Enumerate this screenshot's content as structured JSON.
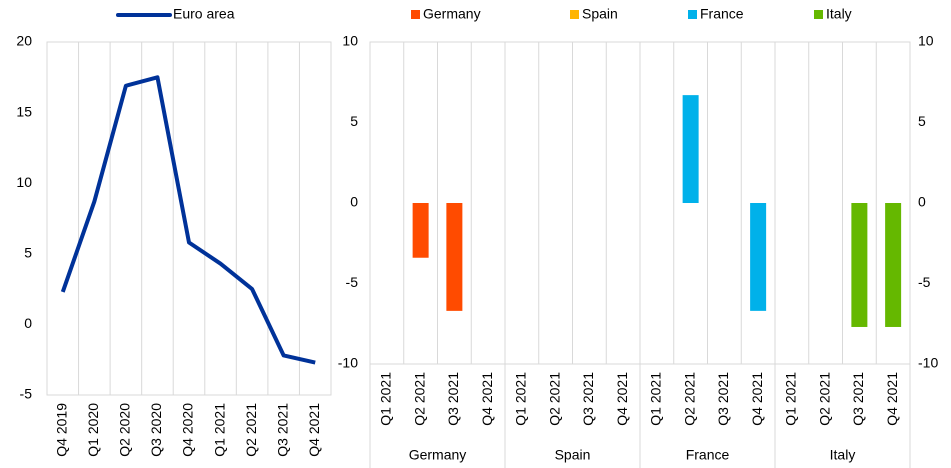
{
  "chart_data": [
    {
      "type": "line",
      "categories": [
        "Q4 2019",
        "Q1 2020",
        "Q2 2020",
        "Q3 2020",
        "Q4 2020",
        "Q1 2021",
        "Q2 2021",
        "Q3 2021",
        "Q4 2021"
      ],
      "series": [
        {
          "name": "Euro area",
          "color": "#003299",
          "values": [
            2.3,
            8.7,
            16.9,
            17.5,
            5.8,
            4.3,
            2.5,
            -2.2,
            -2.7
          ]
        }
      ],
      "ylim": [
        -5,
        20
      ],
      "yticks": [
        -5,
        0,
        5,
        10,
        15,
        20
      ],
      "grid": true,
      "legend": "top"
    },
    {
      "type": "grouped-bar",
      "groups": [
        {
          "name": "Germany",
          "categories": [
            "Q1 2021",
            "Q2 2021",
            "Q3 2021",
            "Q4 2021"
          ]
        },
        {
          "name": "Spain",
          "categories": [
            "Q1 2021",
            "Q2 2021",
            "Q3 2021",
            "Q4 2021"
          ]
        },
        {
          "name": "France",
          "categories": [
            "Q1 2021",
            "Q2 2021",
            "Q3 2021",
            "Q4 2021"
          ]
        },
        {
          "name": "Italy",
          "categories": [
            "Q1 2021",
            "Q2 2021",
            "Q3 2021",
            "Q4 2021"
          ]
        }
      ],
      "series": [
        {
          "name": "Germany",
          "color": "#ff4b00",
          "values": [
            0,
            -3.4,
            -6.7,
            0
          ]
        },
        {
          "name": "Spain",
          "color": "#ffb400",
          "values": [
            0,
            0,
            0,
            0
          ]
        },
        {
          "name": "France",
          "color": "#00b1ea",
          "values": [
            0,
            6.7,
            0,
            -6.7
          ]
        },
        {
          "name": "Italy",
          "color": "#65b800",
          "values": [
            0,
            0,
            -7.7,
            -7.7
          ]
        }
      ],
      "ylim": [
        -10,
        10
      ],
      "yticks": [
        -10,
        -5,
        0,
        5,
        10
      ],
      "y2lim": [
        -10,
        10
      ],
      "y2ticks": [
        -10,
        -5,
        0,
        5,
        10
      ],
      "grid": true,
      "legend": "top"
    }
  ]
}
